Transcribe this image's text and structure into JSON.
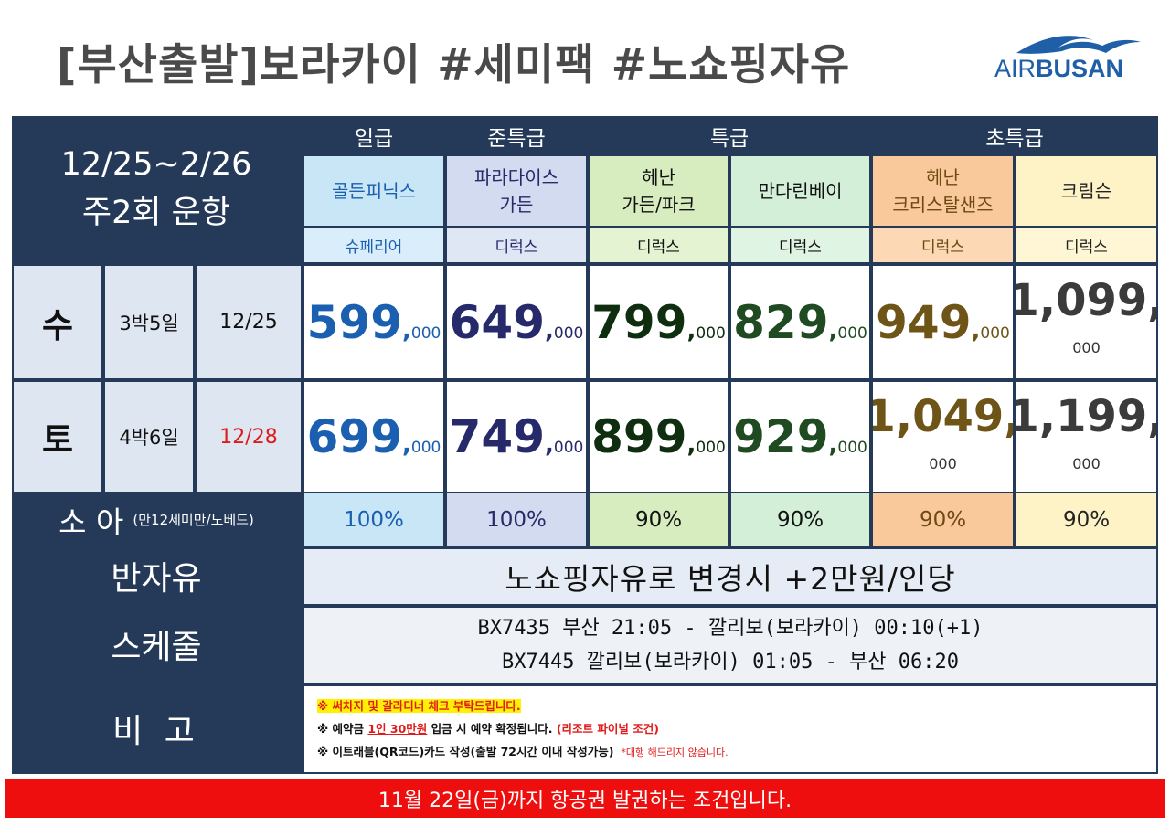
{
  "title": "[부산출발]보라카이  #세미팩  #노쇼핑자유",
  "logo": {
    "prefix": "AIR",
    "main": "BUSAN",
    "color": "#1f5fa8"
  },
  "period": {
    "dates": "12/25~2/26",
    "freq": "주2회 운항"
  },
  "grades": [
    "일급",
    "준특급",
    "특급",
    "초특급"
  ],
  "hotels": [
    {
      "line1": "골든피닉스",
      "line2": "",
      "room": "슈페리어",
      "color": "#1a5fb0"
    },
    {
      "line1": "파라다이스",
      "line2": "가든",
      "room": "디럭스",
      "color": "#262a6a"
    },
    {
      "line1": "헤난",
      "line2": "가든/파크",
      "room": "디럭스",
      "color": "#0f2e0f"
    },
    {
      "line1": "만다린베이",
      "line2": "",
      "room": "디럭스",
      "color": "#1f4a22"
    },
    {
      "line1": "헤난",
      "line2": "크리스탈샌즈",
      "room": "디럭스",
      "color": "#6e5417"
    },
    {
      "line1": "크림슨",
      "line2": "",
      "room": "디럭스",
      "color": "#3b3b3b"
    }
  ],
  "rows": [
    {
      "day": "수",
      "nights": "3박5일",
      "date": "12/25",
      "prices": [
        "599",
        "649",
        "799",
        "829",
        "949",
        "1,099"
      ]
    },
    {
      "day": "토",
      "nights": "4박6일",
      "date": "12/28",
      "prices": [
        "699",
        "749",
        "899",
        "929",
        "1,049",
        "1,199"
      ]
    }
  ],
  "price_comma": ",",
  "price_suffix": "000",
  "child": {
    "label": "소 아",
    "note": "(만12세미만/노베드)",
    "percents": [
      "100%",
      "100%",
      "90%",
      "90%",
      "90%",
      "90%"
    ]
  },
  "half_free": {
    "label": "반자유",
    "text": "노쇼핑자유로 변경시  +2만원/인당"
  },
  "schedule": {
    "label": "스케줄",
    "lines": [
      "BX7435 부산 21:05 - 깔리보(보라카이) 00:10(+1)",
      "BX7445 깔리보(보라카이) 01:05 -  부산 06:20"
    ]
  },
  "remarks": {
    "label": "비  고",
    "line1": "※ 써차지 및 갈라디너 체크 부탁드립니다.",
    "line2_a": "※ 예약금 ",
    "line2_b": "1인 30만원",
    "line2_c": " 입금 시 예약 확정됩니다. ",
    "line2_d": "(리조트 파이널 조건)",
    "line3_a": "※ 이트래블(QR코드)카드 작성(출발 72시간 이내 작성가능)",
    "line3_b": "*대행 해드리지 않습니다."
  },
  "banner": "11월 22일(금)까지 항공권 발권하는 조건입니다."
}
